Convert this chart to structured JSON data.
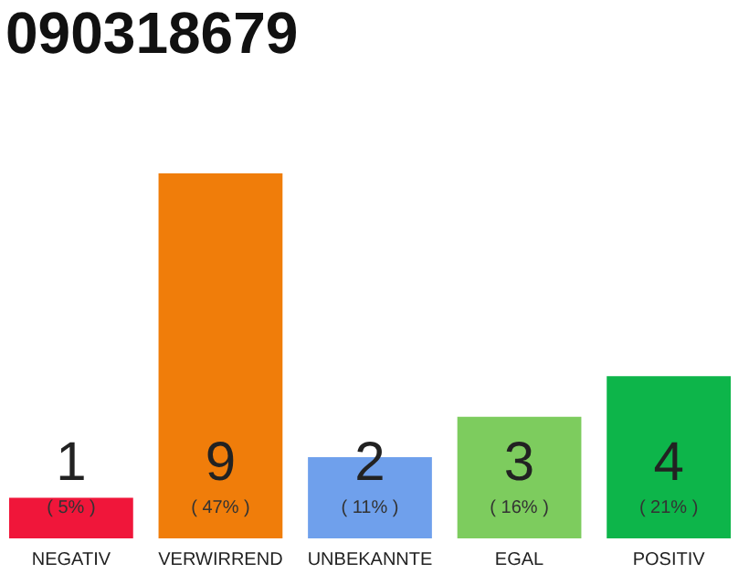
{
  "chart_data": {
    "type": "bar",
    "title": "090318679",
    "categories": [
      "NEGATIV",
      "VERWIRREND",
      "UNBEKANNTE",
      "EGAL",
      "POSITIV"
    ],
    "values": [
      1,
      9,
      2,
      3,
      4
    ],
    "colors": [
      "#f0163a",
      "#f07d0a",
      "#6fa0ec",
      "#7dcc5e",
      "#0db54a"
    ],
    "ylim": [
      0,
      9
    ],
    "data_labels": true,
    "tick_labels": "x",
    "grid": false,
    "annotations": [
      "( 5% )",
      "( 47% )",
      "( 11% )",
      "( 16% )",
      "( 21% )"
    ]
  }
}
